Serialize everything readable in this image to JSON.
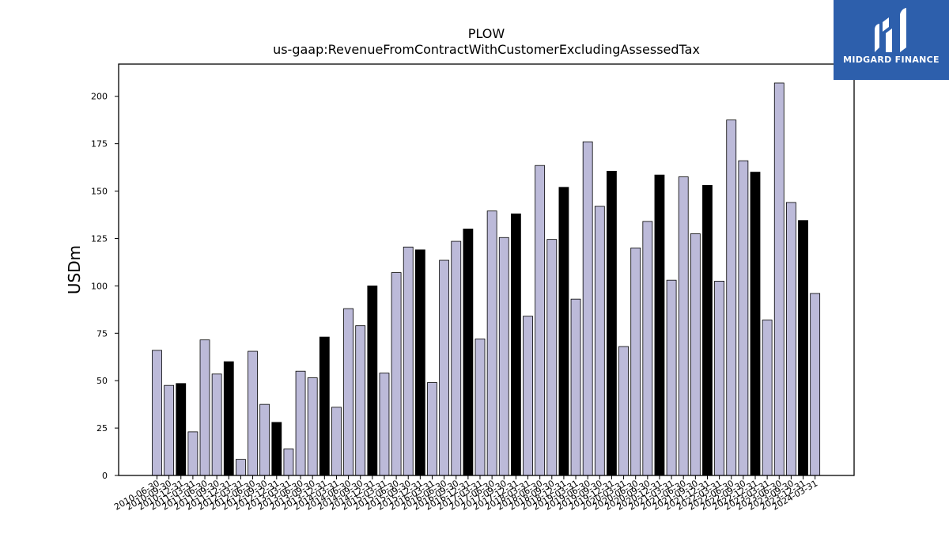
{
  "chart_data": {
    "type": "bar",
    "title": "PLOW",
    "subtitle": "us-gaap:RevenueFromContractWithCustomerExcludingAssessedTax",
    "xlabel": "",
    "ylabel": "USDm",
    "ylim": [
      0,
      217
    ],
    "yticks": [
      0,
      25,
      50,
      75,
      100,
      125,
      150,
      175,
      200
    ],
    "grid": false,
    "colors": {
      "quarter": "#bcbad9",
      "fiscal_year_end": "#000000",
      "edge": "#000000"
    },
    "categories": [
      "2010-06-30",
      "2010-09-30",
      "2010-12-31",
      "2011-03-31",
      "2011-06-30",
      "2011-09-30",
      "2011-12-31",
      "2012-03-31",
      "2012-06-30",
      "2012-09-30",
      "2012-12-31",
      "2013-03-31",
      "2013-06-30",
      "2013-09-30",
      "2013-12-31",
      "2014-03-31",
      "2014-06-30",
      "2014-09-30",
      "2014-12-31",
      "2015-03-31",
      "2015-06-30",
      "2015-09-30",
      "2015-12-31",
      "2016-03-31",
      "2016-06-30",
      "2016-09-30",
      "2016-12-31",
      "2017-03-31",
      "2017-06-30",
      "2017-09-30",
      "2017-12-31",
      "2018-03-31",
      "2018-06-30",
      "2018-09-30",
      "2018-12-31",
      "2019-03-31",
      "2019-06-30",
      "2019-09-30",
      "2019-12-31",
      "2020-03-31",
      "2020-06-30",
      "2020-09-30",
      "2020-12-31",
      "2021-03-31",
      "2021-06-30",
      "2021-09-30",
      "2021-12-31",
      "2022-03-31",
      "2022-06-30",
      "2022-09-30",
      "2022-12-31",
      "2023-03-31",
      "2023-06-30",
      "2023-09-30",
      "2023-12-31",
      "2024-03-31"
    ],
    "values": [
      66,
      47.5,
      48.5,
      23,
      71.5,
      53.5,
      60,
      8.5,
      65.5,
      37.5,
      28,
      14,
      55,
      51.5,
      73,
      36,
      88,
      79,
      100,
      54,
      107,
      120.5,
      119,
      49,
      113.5,
      123.5,
      130,
      72,
      139.5,
      125.5,
      138,
      84,
      163.5,
      124.5,
      152,
      93,
      176,
      142,
      160.5,
      68,
      120,
      134,
      158.5,
      103,
      157.5,
      127.5,
      153,
      102.5,
      187.5,
      166,
      160,
      82,
      207,
      144,
      134.5,
      96
    ],
    "highlight_fiscal_year_end": "12-31"
  },
  "logo": {
    "text": "MIDGARD FINANCE",
    "background": "#2d5fac"
  }
}
